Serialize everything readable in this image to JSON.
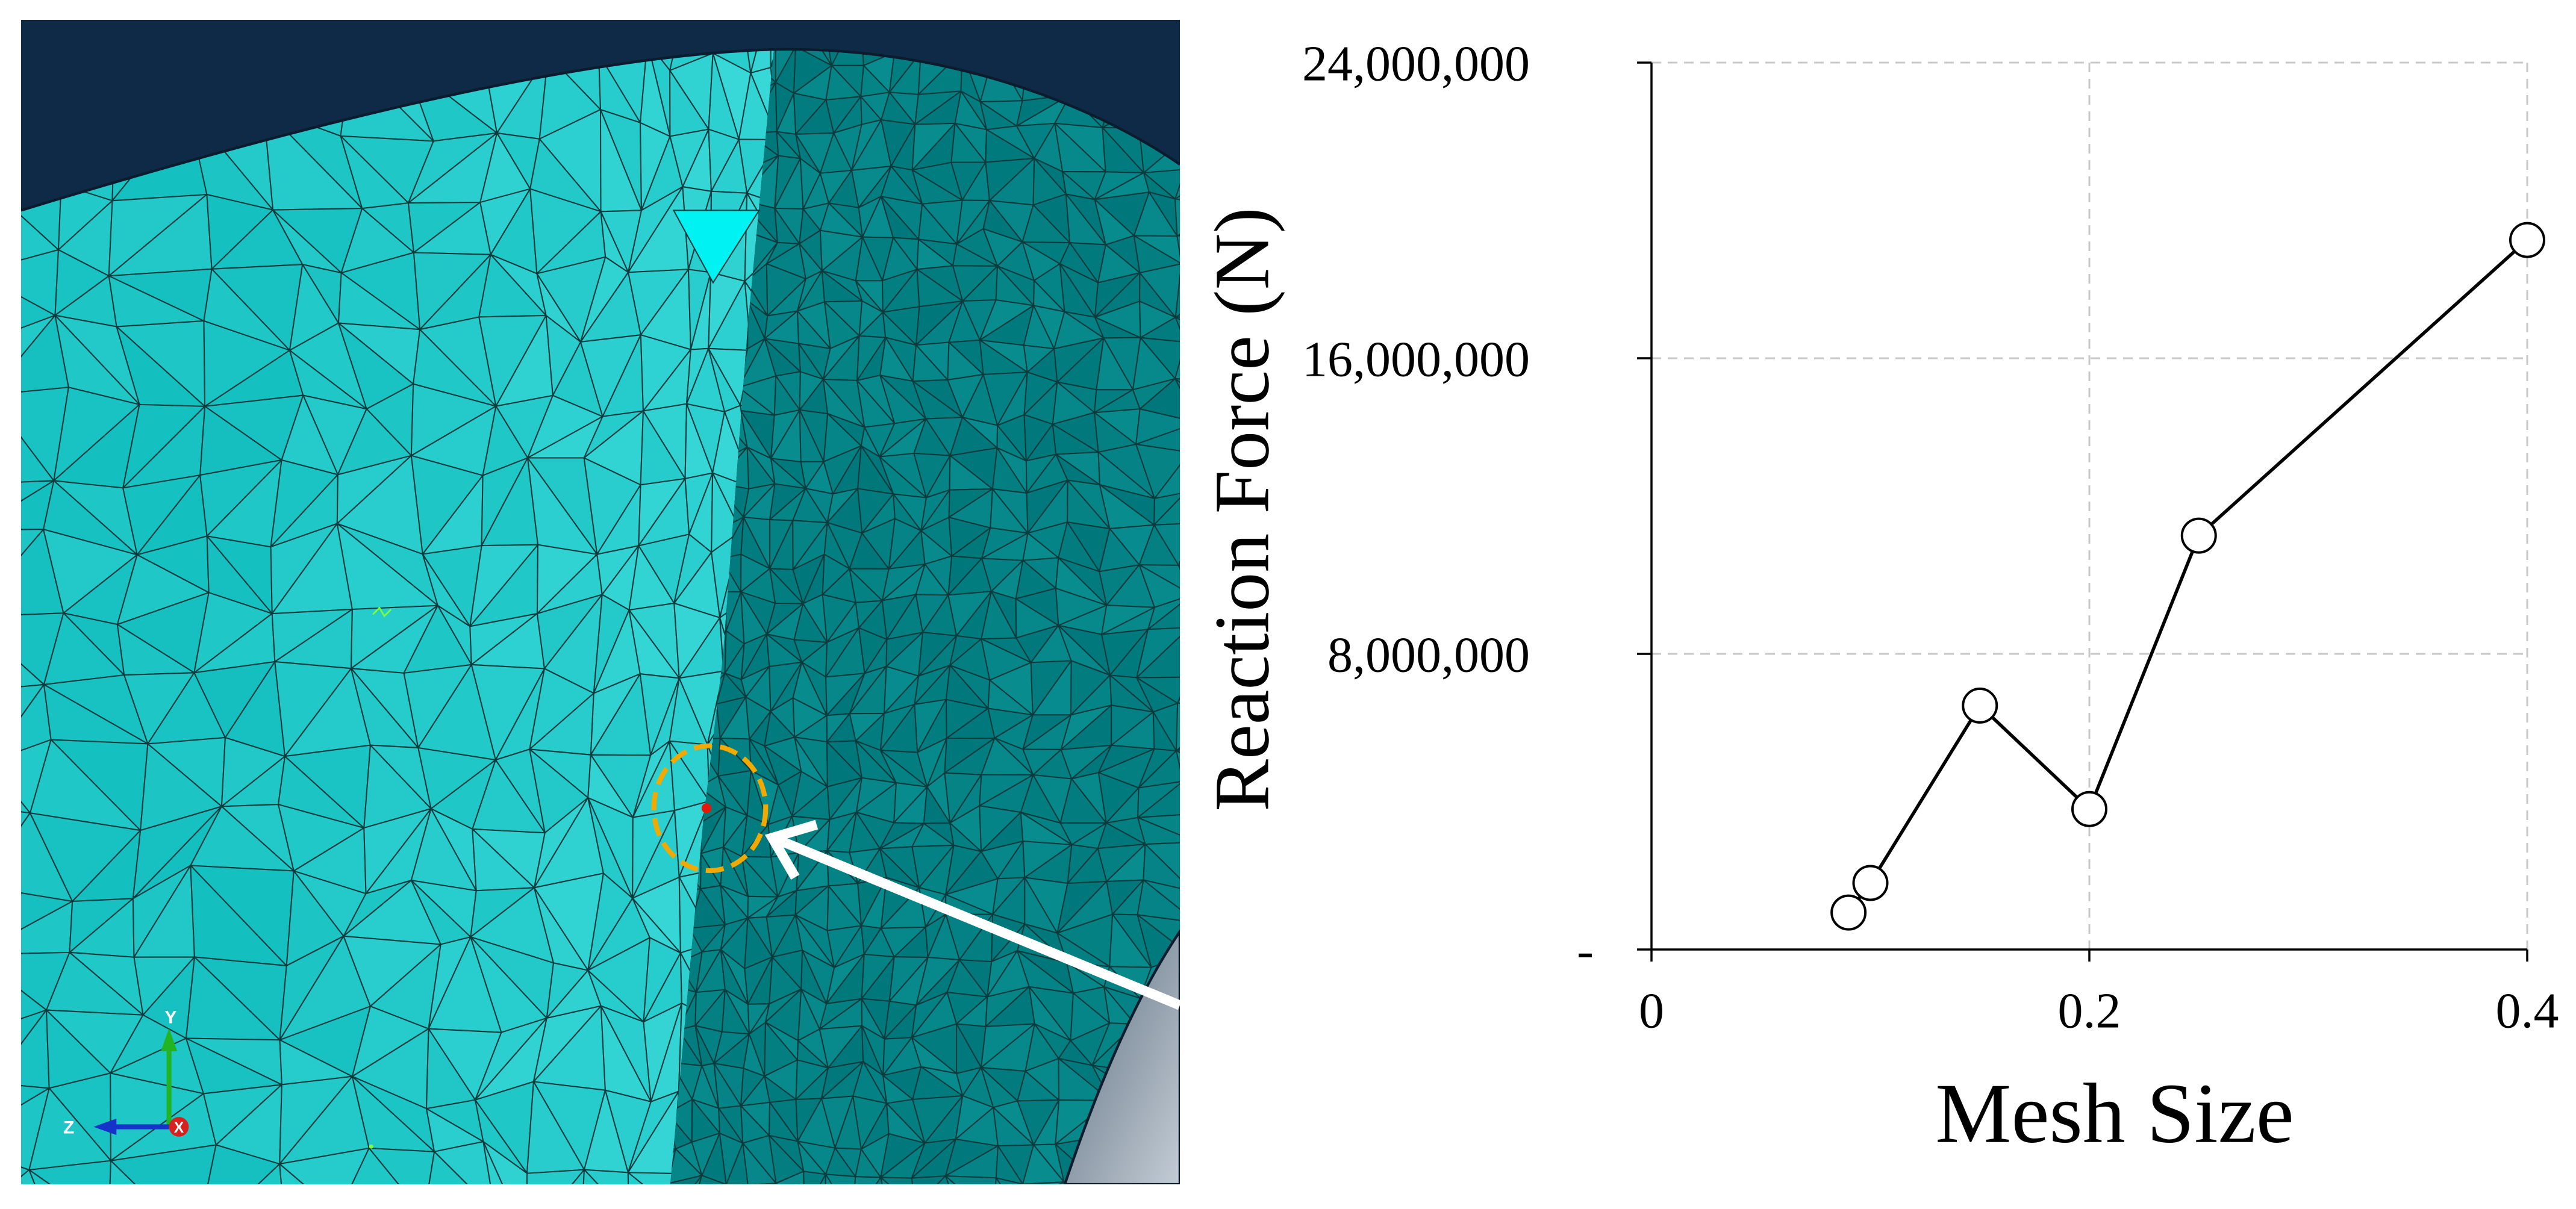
{
  "figure": {
    "mesh_view": {
      "triad_labels": {
        "y": "Y",
        "z": "Z",
        "x": "X"
      },
      "icons": {
        "triad": "axis-triad-icon",
        "pointer": "arrow-icon"
      },
      "colors": {
        "background": "#0f2a47",
        "mesh_face": "#14bfbf",
        "mesh_face_light": "#42dede",
        "mesh_face_bright": "#00f2f2",
        "mesh_shaded": "#00777a",
        "mesh_shaded_light": "#0b9294",
        "mesh_lines": "#0a3b3d",
        "outline": "#0a1c2e",
        "rigid_surface_dark": "#5c6d7e",
        "rigid_surface_light": "#c3ccd5",
        "highlight_circle": "#f2a900",
        "selected_node": "#e3170a",
        "arrow": "#ffffff",
        "triad_x": "#d8211e",
        "triad_y": "#22b422",
        "triad_z": "#1633c9",
        "marker": "#7dff3a"
      }
    },
    "chart_colors": {
      "line": "#000000",
      "marker_fill": "#ffffff",
      "grid": "#c8c8c8",
      "axis": "#000000"
    }
  },
  "chart_data": {
    "type": "line",
    "xlabel": "Mesh Size",
    "ylabel": "Reaction Force (N)",
    "xlim": [
      0,
      0.4
    ],
    "ylim": [
      0,
      24000000
    ],
    "x_ticks": [
      0,
      0.2,
      0.4
    ],
    "x_tick_labels": [
      "0",
      "0.2",
      "0.4"
    ],
    "y_ticks": [
      0,
      8000000,
      16000000,
      24000000
    ],
    "y_tick_labels": [
      "-",
      "8,000,000",
      "16,000,000",
      "24,000,000"
    ],
    "grid": true,
    "marker": "open-circle",
    "series": [
      {
        "x": [
          0.09,
          0.1,
          0.15,
          0.2,
          0.25,
          0.4
        ],
        "y": [
          1000000,
          1800000,
          6600000,
          3800000,
          11200000,
          19200000
        ]
      }
    ]
  }
}
